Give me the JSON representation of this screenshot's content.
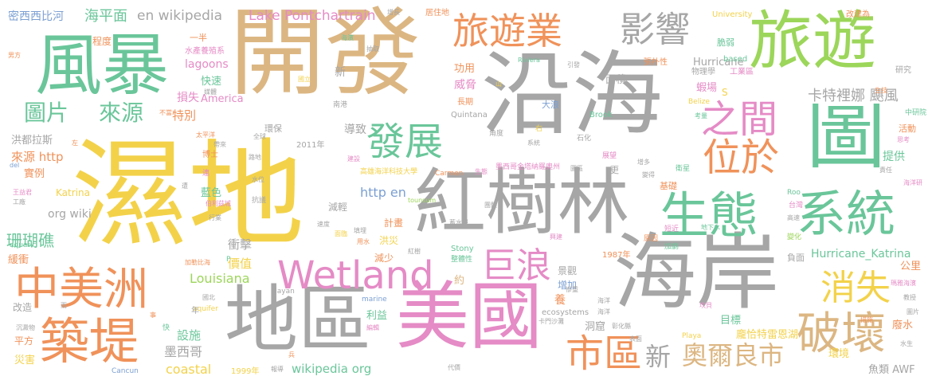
{
  "colors": {
    "gold": "#f3d24a",
    "grey": "#a6a6a6",
    "mint": "#6ac69a",
    "lime": "#9cd65a",
    "tan": "#dcb682",
    "orange": "#f0925a",
    "pink": "#e58bc6",
    "blue": "#7b9fd2"
  },
  "words": [
    {
      "id": "wetland-zh",
      "text": "濕地",
      "color": "gold"
    },
    {
      "id": "coast-sea",
      "text": "沿海",
      "color": "grey"
    },
    {
      "id": "development",
      "text": "開發",
      "color": "tan"
    },
    {
      "id": "coastline",
      "text": "海岸",
      "color": "grey"
    },
    {
      "id": "mangrove",
      "text": "紅樹林",
      "color": "grey"
    },
    {
      "id": "usa",
      "text": "美國",
      "color": "pink"
    },
    {
      "id": "region",
      "text": "地區",
      "color": "grey"
    },
    {
      "id": "storm",
      "text": "風暴",
      "color": "mint"
    },
    {
      "id": "tourism",
      "text": "旅遊",
      "color": "lime"
    },
    {
      "id": "map",
      "text": "圖",
      "color": "mint"
    },
    {
      "id": "central-america",
      "text": "中美洲",
      "color": "orange"
    },
    {
      "id": "ecosystem",
      "text": "生態",
      "color": "mint"
    },
    {
      "id": "system",
      "text": "系統",
      "color": "mint"
    },
    {
      "id": "levee",
      "text": "築堤",
      "color": "orange"
    },
    {
      "id": "wetland-en",
      "text": "Wetland",
      "color": "pink"
    },
    {
      "id": "tourism-industry",
      "text": "旅遊業",
      "color": "orange"
    },
    {
      "id": "influence",
      "text": "影響",
      "color": "grey"
    },
    {
      "id": "develop-2",
      "text": "發展",
      "color": "mint"
    },
    {
      "id": "urban-area",
      "text": "市區",
      "color": "orange"
    },
    {
      "id": "tsunami",
      "text": "巨浪",
      "color": "pink"
    },
    {
      "id": "located-at",
      "text": "位於",
      "color": "orange"
    },
    {
      "id": "between",
      "text": "之間",
      "color": "pink"
    },
    {
      "id": "destroy",
      "text": "破壞",
      "color": "tan"
    },
    {
      "id": "disappear",
      "text": "消失",
      "color": "gold"
    },
    {
      "id": "new-orleans",
      "text": "奧爾良市",
      "color": "tan"
    },
    {
      "id": "new",
      "text": "新",
      "color": "grey"
    },
    {
      "id": "picture",
      "text": "圖片",
      "color": "mint"
    },
    {
      "id": "source",
      "text": "來源",
      "color": "mint"
    },
    {
      "id": "sea-level",
      "text": "海平面",
      "color": "mint"
    },
    {
      "id": "wikipedia",
      "text": "en wikipedia",
      "color": "grey"
    },
    {
      "id": "lake-pontchartrain",
      "text": "Lake Pontchartrain",
      "color": "pink"
    },
    {
      "id": "mississippi-river",
      "text": "密西西比河",
      "color": "blue"
    },
    {
      "id": "katrina-hurricane",
      "text": "卡特裡娜 颶風",
      "color": "grey"
    },
    {
      "id": "louisiana",
      "text": "Louisiana",
      "color": "lime"
    },
    {
      "id": "coral-reef",
      "text": "珊瑚礁",
      "color": "mint"
    },
    {
      "id": "impact",
      "text": "衝擊",
      "color": "grey"
    },
    {
      "id": "value",
      "text": "價值",
      "color": "gold"
    },
    {
      "id": "mexico",
      "text": "墨西哥",
      "color": "grey"
    },
    {
      "id": "coastal",
      "text": "coastal",
      "color": "gold"
    },
    {
      "id": "facilities",
      "text": "設施",
      "color": "mint"
    },
    {
      "id": "wikipedia-org",
      "text": "wikipedia org",
      "color": "mint"
    },
    {
      "id": "hurricane-katrina",
      "text": "Hurricane_Katrina",
      "color": "mint"
    },
    {
      "id": "http-en",
      "text": "http en",
      "color": "blue"
    },
    {
      "id": "org-wiki",
      "text": "org wiki",
      "color": "grey"
    },
    {
      "id": "special",
      "text": "特別",
      "color": "orange"
    },
    {
      "id": "fast",
      "text": "快速",
      "color": "mint"
    },
    {
      "id": "loss",
      "text": "損失",
      "color": "pink"
    },
    {
      "id": "america",
      "text": "America",
      "color": "pink"
    },
    {
      "id": "lagoons",
      "text": "lagoons",
      "color": "pink"
    },
    {
      "id": "threat",
      "text": "威脅",
      "color": "pink"
    },
    {
      "id": "function",
      "text": "功用",
      "color": "orange"
    },
    {
      "id": "area",
      "text": "面積",
      "color": "grey"
    },
    {
      "id": "shrimp-farm",
      "text": "蝦場",
      "color": "pink"
    },
    {
      "id": "hurricane",
      "text": "Hurricane",
      "color": "grey"
    },
    {
      "id": "honduras",
      "text": "洪都拉斯",
      "color": "grey"
    },
    {
      "id": "source-http",
      "text": "來源 http",
      "color": "orange"
    },
    {
      "id": "example",
      "text": "實例",
      "color": "orange"
    },
    {
      "id": "lead-to",
      "text": "導致",
      "color": "grey"
    },
    {
      "id": "provide",
      "text": "提供",
      "color": "mint"
    },
    {
      "id": "lake-pontchartrain-zh",
      "text": "龐恰特雷恩湖",
      "color": "gold"
    },
    {
      "id": "awf",
      "text": "魚類 AWF",
      "color": "grey"
    },
    {
      "id": "environment",
      "text": "環境",
      "color": "gold"
    },
    {
      "id": "public-mile",
      "text": "公里",
      "color": "orange"
    },
    {
      "id": "waste-water",
      "text": "廢水",
      "color": "orange"
    },
    {
      "id": "katrina",
      "text": "Katrina",
      "color": "gold"
    },
    {
      "id": "blue",
      "text": "藍色",
      "color": "mint"
    },
    {
      "id": "reduce",
      "text": "減輕",
      "color": "grey"
    },
    {
      "id": "plan",
      "text": "計畫",
      "color": "orange"
    },
    {
      "id": "flood",
      "text": "洪災",
      "color": "gold"
    },
    {
      "id": "decrease",
      "text": "減少",
      "color": "orange"
    },
    {
      "id": "landscape",
      "text": "景觀",
      "color": "grey"
    },
    {
      "id": "increase",
      "text": "增加",
      "color": "blue"
    },
    {
      "id": "raise",
      "text": "養",
      "color": "orange"
    },
    {
      "id": "benefit",
      "text": "利益",
      "color": "mint"
    },
    {
      "id": "about",
      "text": "約",
      "color": "tan"
    },
    {
      "id": "cave",
      "text": "洞窟",
      "color": "grey"
    },
    {
      "id": "target",
      "text": "目標",
      "color": "mint"
    },
    {
      "id": "square",
      "text": "平方",
      "color": "orange"
    },
    {
      "id": "disaster",
      "text": "災害",
      "color": "gold"
    },
    {
      "id": "slow-down",
      "text": "緩衝",
      "color": "orange"
    },
    {
      "id": "change-build",
      "text": "改造",
      "color": "grey"
    },
    {
      "id": "environmental",
      "text": "環保",
      "color": "grey"
    },
    {
      "id": "big-wave",
      "text": "大浪",
      "color": "blue"
    },
    {
      "id": "long-term",
      "text": "長期",
      "color": "orange"
    },
    {
      "id": "basis",
      "text": "基礎",
      "color": "orange"
    },
    {
      "id": "negative",
      "text": "負面",
      "color": "grey"
    },
    {
      "id": "degree",
      "text": "程度",
      "color": "orange"
    },
    {
      "id": "one-half",
      "text": "一半",
      "color": "orange"
    },
    {
      "id": "fragile",
      "text": "脆弱",
      "color": "mint"
    },
    {
      "id": "s",
      "text": "S",
      "color": "gold"
    },
    {
      "id": "1987",
      "text": "1987年",
      "color": "orange"
    },
    {
      "id": "1999",
      "text": "1999年",
      "color": "gold"
    },
    {
      "id": "2011",
      "text": "2011年",
      "color": "grey"
    },
    {
      "id": "university",
      "text": "University",
      "color": "gold"
    },
    {
      "id": "based",
      "text": "based",
      "color": "mint"
    },
    {
      "id": "industrial-zone",
      "text": "工業區",
      "color": "pink"
    },
    {
      "id": "physics",
      "text": "物理學",
      "color": "grey"
    },
    {
      "id": "research",
      "text": "研究",
      "color": "grey"
    },
    {
      "id": "aquaculture",
      "text": "水產養殖系",
      "color": "pink"
    },
    {
      "id": "man",
      "text": "男方",
      "color": "orange"
    },
    {
      "id": "coast-rivers",
      "text": "海濱",
      "color": "mint"
    },
    {
      "id": "extract",
      "text": "抽取",
      "color": "grey"
    },
    {
      "id": "riviera",
      "text": "Riviera",
      "color": "mint"
    },
    {
      "id": "growth",
      "text": "增長",
      "color": "grey"
    },
    {
      "id": "residence",
      "text": "居住地",
      "color": "orange"
    },
    {
      "id": "change-to",
      "text": "改建為",
      "color": "orange"
    },
    {
      "id": "ecosystems",
      "text": "ecosystems",
      "color": "grey"
    },
    {
      "id": "cancun",
      "text": "Cancun",
      "color": "blue"
    },
    {
      "id": "stony",
      "text": "Stony",
      "color": "mint"
    },
    {
      "id": "aquifer",
      "text": "aquifer",
      "color": "gold"
    },
    {
      "id": "aquatic",
      "text": "aquatic",
      "color": "mint"
    },
    {
      "id": "marine",
      "text": "marine",
      "color": "blue"
    },
    {
      "id": "mayan",
      "text": "Mayan",
      "color": "grey"
    },
    {
      "id": "playa",
      "text": "Playa",
      "color": "gold"
    },
    {
      "id": "brook",
      "text": "Brook",
      "color": "mint"
    },
    {
      "id": "belize",
      "text": "Belize",
      "color": "gold"
    },
    {
      "id": "quintana",
      "text": "Quintana",
      "color": "grey"
    },
    {
      "id": "carmen",
      "text": "Carmen",
      "color": "orange"
    },
    {
      "id": "roo",
      "text": "Roo",
      "color": "mint"
    },
    {
      "id": "tounsum",
      "text": "tounsum",
      "color": "lime"
    },
    {
      "id": "del",
      "text": "del",
      "color": "blue"
    },
    {
      "id": "kaohsiung-univ",
      "text": "高雄海洋科技大學",
      "color": "gold"
    },
    {
      "id": "mexico-city",
      "text": "墨西哥金塔納羅奧州",
      "color": "pink"
    },
    {
      "id": "taiwan",
      "text": "台灣",
      "color": "pink"
    },
    {
      "id": "high-speed",
      "text": "高速",
      "color": "grey"
    },
    {
      "id": "cause",
      "text": "原因",
      "color": "orange"
    },
    {
      "id": "change",
      "text": "變化",
      "color": "lime"
    },
    {
      "id": "groundwater",
      "text": "地下水",
      "color": "mint"
    },
    {
      "id": "approach",
      "text": "短近",
      "color": "pink"
    },
    {
      "id": "development-3",
      "text": "展望",
      "color": "pink"
    },
    {
      "id": "satellite",
      "text": "衛星",
      "color": "mint"
    },
    {
      "id": "responsibility",
      "text": "責任",
      "color": "grey"
    },
    {
      "id": "ocean-pollution",
      "text": "海洋研",
      "color": "pink"
    },
    {
      "id": "institute",
      "text": "中研院",
      "color": "mint"
    },
    {
      "id": "activity",
      "text": "活動",
      "color": "orange"
    },
    {
      "id": "think",
      "text": "思考",
      "color": "pink"
    },
    {
      "id": "maya-coast",
      "text": "瑪雅海濱",
      "color": "pink"
    },
    {
      "id": "teach",
      "text": "教授",
      "color": "grey"
    },
    {
      "id": "picture-2",
      "text": "圖片",
      "color": "grey"
    },
    {
      "id": "water-body",
      "text": "水生",
      "color": "grey"
    },
    {
      "id": "measure",
      "text": "措施",
      "color": "orange"
    },
    {
      "id": "surface",
      "text": "表面",
      "color": "grey"
    },
    {
      "id": "kanban",
      "text": "坎貝",
      "color": "pink"
    },
    {
      "id": "cooler",
      "text": "慘重",
      "color": "grey"
    },
    {
      "id": "ocean",
      "text": "海洋",
      "color": "grey"
    },
    {
      "id": "transformation",
      "text": "彰化縣",
      "color": "grey"
    },
    {
      "id": "caracol",
      "text": "卡門沙灘",
      "color": "grey"
    },
    {
      "id": "edit",
      "text": "編輯",
      "color": "pink"
    },
    {
      "id": "return",
      "text": "報導",
      "color": "grey"
    },
    {
      "id": "replace",
      "text": "代價",
      "color": "grey"
    },
    {
      "id": "soldier",
      "text": "兵",
      "color": "orange"
    },
    {
      "id": "sediment",
      "text": "沉澱物",
      "color": "grey"
    },
    {
      "id": "rain",
      "text": "雨",
      "color": "grey"
    },
    {
      "id": "thing",
      "text": "事",
      "color": "orange"
    },
    {
      "id": "fast-2",
      "text": "快",
      "color": "mint"
    },
    {
      "id": "year",
      "text": "年",
      "color": "grey"
    },
    {
      "id": "national-taiwan",
      "text": "國北",
      "color": "grey"
    },
    {
      "id": "caribbean",
      "text": "加勒比海",
      "color": "orange"
    },
    {
      "id": "p",
      "text": "P",
      "color": "mint"
    },
    {
      "id": "industry-trade",
      "text": "工廠",
      "color": "grey"
    },
    {
      "id": "wang-yu",
      "text": "王益君",
      "color": "pink"
    },
    {
      "id": "resist",
      "text": "抗議",
      "color": "grey"
    },
    {
      "id": "salt",
      "text": "伯利茲城",
      "color": "pink"
    },
    {
      "id": "industry",
      "text": "行業",
      "color": "grey"
    },
    {
      "id": "connect",
      "text": "連",
      "color": "pink"
    },
    {
      "id": "doctor",
      "text": "博士",
      "color": "orange"
    },
    {
      "id": "pacific",
      "text": "太平洋",
      "color": "orange"
    },
    {
      "id": "belt",
      "text": "帶來",
      "color": "grey"
    },
    {
      "id": "whole",
      "text": "全球",
      "color": "grey"
    },
    {
      "id": "road",
      "text": "路地",
      "color": "grey"
    },
    {
      "id": "building",
      "text": "建設",
      "color": "pink"
    },
    {
      "id": "agreement",
      "text": "生態",
      "color": "pink"
    },
    {
      "id": "flood-water",
      "text": "水位",
      "color": "grey"
    },
    {
      "id": "speed",
      "text": "速度",
      "color": "grey"
    },
    {
      "id": "landfill",
      "text": "填埋",
      "color": "grey"
    },
    {
      "id": "national",
      "text": "國立",
      "color": "gold"
    },
    {
      "id": "not-worth",
      "text": "不當",
      "color": "orange"
    },
    {
      "id": "media",
      "text": "媒體",
      "color": "grey"
    },
    {
      "id": "south-harbor",
      "text": "南港",
      "color": "grey"
    },
    {
      "id": "right",
      "text": "右",
      "color": "gold"
    },
    {
      "id": "angle",
      "text": "角度",
      "color": "grey"
    },
    {
      "id": "petrochem",
      "text": "石化",
      "color": "grey"
    },
    {
      "id": "system-2",
      "text": "系統",
      "color": "grey"
    },
    {
      "id": "guide",
      "text": "引發",
      "color": "grey"
    },
    {
      "id": "hurricane-zh",
      "text": "張朴性",
      "color": "orange"
    },
    {
      "id": "consider",
      "text": "考量",
      "color": "mint"
    },
    {
      "id": "geology",
      "text": "生技",
      "color": "orange"
    },
    {
      "id": "gulf",
      "text": "圖區",
      "color": "grey"
    },
    {
      "id": "more",
      "text": "更",
      "color": "grey"
    },
    {
      "id": "add",
      "text": "增多",
      "color": "grey"
    },
    {
      "id": "obtain",
      "text": "變得",
      "color": "grey"
    },
    {
      "id": "bigger",
      "text": "加劇",
      "color": "mint"
    },
    {
      "id": "left",
      "text": "左",
      "color": "orange"
    },
    {
      "id": "arrive",
      "text": "遭",
      "color": "grey"
    },
    {
      "id": "unit",
      "text": "團體",
      "color": "grey"
    },
    {
      "id": "use-water",
      "text": "用水",
      "color": "orange"
    },
    {
      "id": "face",
      "text": "面臨",
      "color": "gold"
    },
    {
      "id": "mangrove-2",
      "text": "紅樹",
      "color": "grey"
    },
    {
      "id": "hemp",
      "text": "整體性",
      "color": "mint"
    },
    {
      "id": "sea-small",
      "text": "海洋",
      "color": "grey"
    },
    {
      "id": "river",
      "text": "蓄水層",
      "color": "grey"
    },
    {
      "id": "ruin",
      "text": "興建",
      "color": "pink"
    },
    {
      "id": "new-2",
      "text": "新",
      "color": "grey"
    },
    {
      "id": "mountain",
      "text": "山",
      "color": "gold"
    }
  ]
}
